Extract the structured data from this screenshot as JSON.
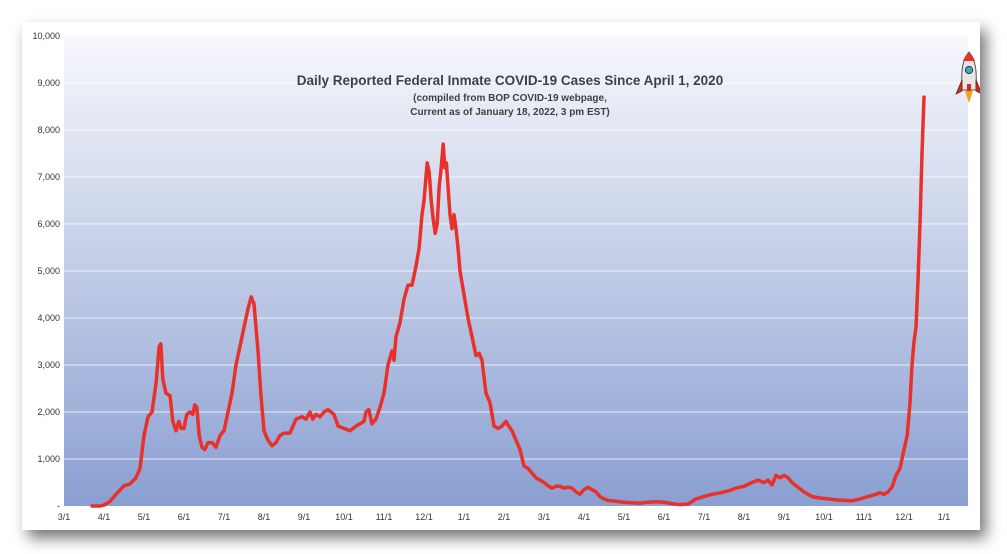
{
  "chart_data": {
    "type": "line",
    "title": "Daily Reported Federal Inmate COVID-19 Cases Since April 1, 2020",
    "subtitle_line1": "(compiled from BOP COVID-19 webpage,",
    "subtitle_line2": "Current as of January 18, 2022, 3 pm EST)",
    "xlabel": "",
    "ylabel": "",
    "ylim": [
      0,
      10000
    ],
    "y_ticks": [
      0,
      1000,
      2000,
      3000,
      4000,
      5000,
      6000,
      7000,
      8000,
      9000,
      10000
    ],
    "y_tick_labels": [
      "-",
      "1,000",
      "2,000",
      "3,000",
      "4,000",
      "5,000",
      "6,000",
      "7,000",
      "8,000",
      "9,000",
      "10,000"
    ],
    "x_tick_labels": [
      "3/1",
      "4/1",
      "5/1",
      "6/1",
      "7/1",
      "8/1",
      "9/1",
      "10/1",
      "11/1",
      "12/1",
      "1/1",
      "2/1",
      "3/1",
      "4/1",
      "5/1",
      "6/1",
      "7/1",
      "8/1",
      "9/1",
      "10/1",
      "11/1",
      "12/1",
      "1/1"
    ],
    "x_unit": "months since 3/1/2020",
    "grid": "horizontal at 1,000",
    "legend": "none",
    "line_color": "#e8312a",
    "points": [
      [
        0.7,
        0
      ],
      [
        0.9,
        0
      ],
      [
        1.0,
        20
      ],
      [
        1.15,
        100
      ],
      [
        1.3,
        250
      ],
      [
        1.5,
        430
      ],
      [
        1.65,
        470
      ],
      [
        1.8,
        600
      ],
      [
        1.9,
        800
      ],
      [
        2.0,
        1500
      ],
      [
        2.1,
        1900
      ],
      [
        2.2,
        2000
      ],
      [
        2.3,
        2600
      ],
      [
        2.38,
        3400
      ],
      [
        2.42,
        3450
      ],
      [
        2.47,
        2700
      ],
      [
        2.55,
        2400
      ],
      [
        2.65,
        2350
      ],
      [
        2.72,
        1800
      ],
      [
        2.8,
        1600
      ],
      [
        2.87,
        1800
      ],
      [
        2.93,
        1650
      ],
      [
        3.0,
        1650
      ],
      [
        3.07,
        1950
      ],
      [
        3.15,
        2000
      ],
      [
        3.22,
        1950
      ],
      [
        3.27,
        2150
      ],
      [
        3.32,
        2100
      ],
      [
        3.38,
        1500
      ],
      [
        3.45,
        1250
      ],
      [
        3.52,
        1200
      ],
      [
        3.6,
        1350
      ],
      [
        3.7,
        1350
      ],
      [
        3.8,
        1250
      ],
      [
        3.9,
        1500
      ],
      [
        4.0,
        1600
      ],
      [
        4.1,
        2000
      ],
      [
        4.2,
        2400
      ],
      [
        4.3,
        3000
      ],
      [
        4.4,
        3400
      ],
      [
        4.5,
        3800
      ],
      [
        4.6,
        4200
      ],
      [
        4.68,
        4450
      ],
      [
        4.75,
        4300
      ],
      [
        4.85,
        3300
      ],
      [
        4.92,
        2400
      ],
      [
        5.0,
        1600
      ],
      [
        5.1,
        1400
      ],
      [
        5.2,
        1280
      ],
      [
        5.3,
        1350
      ],
      [
        5.4,
        1500
      ],
      [
        5.5,
        1550
      ],
      [
        5.65,
        1550
      ],
      [
        5.8,
        1850
      ],
      [
        5.95,
        1900
      ],
      [
        6.05,
        1850
      ],
      [
        6.15,
        2000
      ],
      [
        6.22,
        1850
      ],
      [
        6.3,
        1950
      ],
      [
        6.4,
        1900
      ],
      [
        6.5,
        2000
      ],
      [
        6.6,
        2050
      ],
      [
        6.75,
        1950
      ],
      [
        6.85,
        1700
      ],
      [
        7.0,
        1650
      ],
      [
        7.15,
        1600
      ],
      [
        7.3,
        1700
      ],
      [
        7.4,
        1750
      ],
      [
        7.5,
        1800
      ],
      [
        7.55,
        2000
      ],
      [
        7.62,
        2050
      ],
      [
        7.7,
        1750
      ],
      [
        7.8,
        1850
      ],
      [
        7.9,
        2100
      ],
      [
        8.0,
        2400
      ],
      [
        8.1,
        3000
      ],
      [
        8.2,
        3300
      ],
      [
        8.25,
        3100
      ],
      [
        8.3,
        3600
      ],
      [
        8.4,
        3900
      ],
      [
        8.5,
        4400
      ],
      [
        8.6,
        4700
      ],
      [
        8.7,
        4700
      ],
      [
        8.8,
        5100
      ],
      [
        8.88,
        5500
      ],
      [
        8.95,
        6200
      ],
      [
        9.0,
        6500
      ],
      [
        9.05,
        7000
      ],
      [
        9.08,
        7300
      ],
      [
        9.13,
        7100
      ],
      [
        9.18,
        6500
      ],
      [
        9.23,
        6100
      ],
      [
        9.28,
        5800
      ],
      [
        9.33,
        6000
      ],
      [
        9.38,
        6800
      ],
      [
        9.43,
        7200
      ],
      [
        9.48,
        7700
      ],
      [
        9.52,
        7200
      ],
      [
        9.56,
        7300
      ],
      [
        9.6,
        6800
      ],
      [
        9.65,
        6200
      ],
      [
        9.7,
        5900
      ],
      [
        9.75,
        6200
      ],
      [
        9.8,
        5900
      ],
      [
        9.85,
        5500
      ],
      [
        9.9,
        5000
      ],
      [
        10.0,
        4500
      ],
      [
        10.1,
        4000
      ],
      [
        10.2,
        3600
      ],
      [
        10.3,
        3200
      ],
      [
        10.38,
        3250
      ],
      [
        10.45,
        3100
      ],
      [
        10.55,
        2400
      ],
      [
        10.65,
        2200
      ],
      [
        10.75,
        1700
      ],
      [
        10.85,
        1650
      ],
      [
        10.95,
        1700
      ],
      [
        11.05,
        1800
      ],
      [
        11.12,
        1700
      ],
      [
        11.2,
        1600
      ],
      [
        11.3,
        1400
      ],
      [
        11.4,
        1200
      ],
      [
        11.5,
        850
      ],
      [
        11.6,
        800
      ],
      [
        11.7,
        700
      ],
      [
        11.8,
        600
      ],
      [
        11.9,
        550
      ],
      [
        12.0,
        500
      ],
      [
        12.1,
        430
      ],
      [
        12.2,
        380
      ],
      [
        12.3,
        420
      ],
      [
        12.4,
        420
      ],
      [
        12.5,
        380
      ],
      [
        12.6,
        400
      ],
      [
        12.7,
        380
      ],
      [
        12.8,
        300
      ],
      [
        12.9,
        250
      ],
      [
        13.0,
        350
      ],
      [
        13.1,
        400
      ],
      [
        13.2,
        350
      ],
      [
        13.3,
        300
      ],
      [
        13.4,
        200
      ],
      [
        13.5,
        150
      ],
      [
        13.6,
        120
      ],
      [
        13.8,
        100
      ],
      [
        14.0,
        80
      ],
      [
        14.2,
        70
      ],
      [
        14.4,
        60
      ],
      [
        14.6,
        80
      ],
      [
        14.8,
        90
      ],
      [
        15.0,
        80
      ],
      [
        15.2,
        50
      ],
      [
        15.4,
        30
      ],
      [
        15.6,
        40
      ],
      [
        15.8,
        150
      ],
      [
        16.0,
        200
      ],
      [
        16.2,
        250
      ],
      [
        16.4,
        280
      ],
      [
        16.6,
        320
      ],
      [
        16.8,
        380
      ],
      [
        17.0,
        420
      ],
      [
        17.2,
        500
      ],
      [
        17.35,
        550
      ],
      [
        17.5,
        500
      ],
      [
        17.6,
        550
      ],
      [
        17.7,
        450
      ],
      [
        17.8,
        650
      ],
      [
        17.9,
        600
      ],
      [
        18.0,
        650
      ],
      [
        18.1,
        600
      ],
      [
        18.2,
        500
      ],
      [
        18.35,
        400
      ],
      [
        18.5,
        300
      ],
      [
        18.7,
        200
      ],
      [
        18.9,
        170
      ],
      [
        19.1,
        150
      ],
      [
        19.3,
        130
      ],
      [
        19.5,
        120
      ],
      [
        19.7,
        110
      ],
      [
        19.9,
        150
      ],
      [
        20.1,
        200
      ],
      [
        20.3,
        250
      ],
      [
        20.4,
        280
      ],
      [
        20.5,
        250
      ],
      [
        20.6,
        300
      ],
      [
        20.7,
        400
      ],
      [
        20.8,
        650
      ],
      [
        20.9,
        800
      ],
      [
        21.0,
        1200
      ],
      [
        21.08,
        1500
      ],
      [
        21.15,
        2200
      ],
      [
        21.2,
        3000
      ],
      [
        21.25,
        3500
      ],
      [
        21.3,
        3800
      ],
      [
        21.35,
        4800
      ],
      [
        21.4,
        6000
      ],
      [
        21.45,
        7500
      ],
      [
        21.5,
        8700
      ]
    ]
  }
}
